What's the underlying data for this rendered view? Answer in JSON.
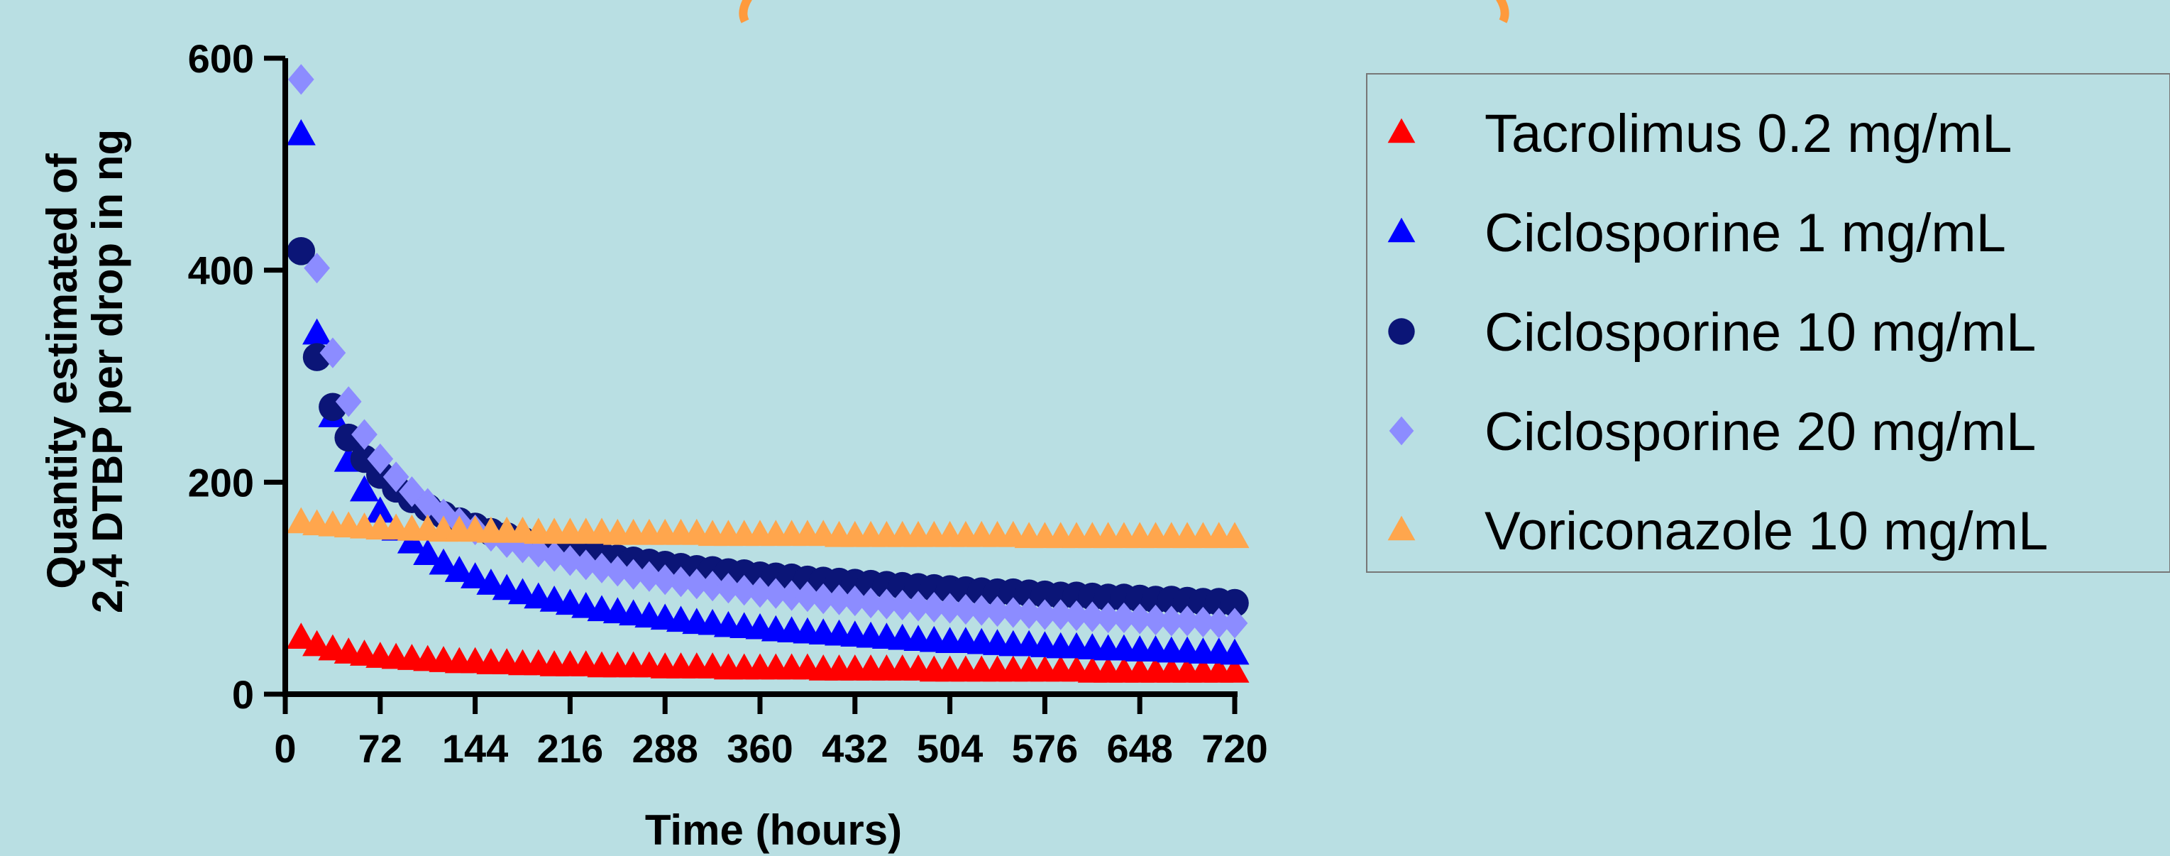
{
  "chart_data": {
    "type": "scatter",
    "xlabel": "Time (hours)",
    "ylabel_lines": [
      "Quantity estimated of",
      "2,4 DTBP per drop in ng"
    ],
    "xlim": [
      0,
      720
    ],
    "ylim": [
      0,
      600
    ],
    "xticks": [
      "0",
      "72",
      "144",
      "216",
      "288",
      "360",
      "432",
      "504",
      "576",
      "648",
      "720"
    ],
    "yticks": [
      "0",
      "200",
      "400",
      "600"
    ],
    "legend_position": "right",
    "series": [
      {
        "name": "Tacrolimus 0.2 mg/mL",
        "marker": "triangle",
        "color": "#ff0000",
        "x": [
          12,
          24,
          36,
          48,
          60,
          72,
          84,
          96,
          108,
          120,
          132,
          144,
          156,
          168,
          180,
          192,
          204,
          216,
          228,
          240,
          252,
          264,
          276,
          288,
          300,
          312,
          324,
          336,
          348,
          360,
          372,
          384,
          396,
          408,
          420,
          432,
          444,
          456,
          468,
          480,
          492,
          504,
          516,
          528,
          540,
          552,
          564,
          576,
          588,
          600,
          612,
          624,
          636,
          648,
          660,
          672,
          684,
          696,
          708,
          720
        ],
        "y": [
          53,
          46,
          42,
          39,
          37,
          35,
          34,
          33,
          32,
          31,
          30,
          30,
          29,
          29,
          28,
          28,
          27,
          27,
          27,
          26,
          26,
          26,
          26,
          25,
          25,
          25,
          25,
          24,
          24,
          24,
          24,
          24,
          24,
          23,
          23,
          23,
          23,
          23,
          23,
          23,
          22,
          22,
          22,
          22,
          22,
          22,
          22,
          22,
          22,
          22,
          21,
          21,
          21,
          21,
          21,
          21,
          21,
          21,
          21,
          21
        ]
      },
      {
        "name": "Ciclosporine 1 mg/mL",
        "marker": "triangle",
        "color": "#0000ff",
        "x": [
          12,
          24,
          36,
          48,
          60,
          72,
          84,
          96,
          108,
          120,
          132,
          144,
          156,
          168,
          180,
          192,
          204,
          216,
          228,
          240,
          252,
          264,
          276,
          288,
          300,
          312,
          324,
          336,
          348,
          360,
          372,
          384,
          396,
          408,
          420,
          432,
          444,
          456,
          468,
          480,
          492,
          504,
          516,
          528,
          540,
          552,
          564,
          576,
          588,
          600,
          612,
          624,
          636,
          648,
          660,
          672,
          684,
          696,
          708,
          720
        ],
        "y": [
          528,
          340,
          262,
          220,
          192,
          172,
          155,
          143,
          132,
          123,
          116,
          110,
          104,
          99,
          95,
          91,
          88,
          85,
          82,
          79,
          77,
          75,
          73,
          71,
          69,
          67,
          66,
          64,
          63,
          62,
          60,
          59,
          58,
          57,
          56,
          55,
          54,
          53,
          52,
          51,
          50,
          49,
          49,
          48,
          47,
          46,
          46,
          45,
          44,
          44,
          43,
          42,
          42,
          41,
          41,
          40,
          40,
          39,
          39,
          38
        ]
      },
      {
        "name": "Ciclosporine 10 mg/mL",
        "marker": "circle",
        "color": "#0b1577",
        "x": [
          12,
          24,
          36,
          48,
          60,
          72,
          84,
          96,
          108,
          120,
          132,
          144,
          156,
          168,
          180,
          192,
          204,
          216,
          228,
          240,
          252,
          264,
          276,
          288,
          300,
          312,
          324,
          336,
          348,
          360,
          372,
          384,
          396,
          408,
          420,
          432,
          444,
          456,
          468,
          480,
          492,
          504,
          516,
          528,
          540,
          552,
          564,
          576,
          588,
          600,
          612,
          624,
          636,
          648,
          660,
          672,
          684,
          696,
          708,
          720
        ],
        "y": [
          418,
          318,
          271,
          242,
          222,
          207,
          194,
          184,
          176,
          169,
          163,
          158,
          153,
          149,
          145,
          142,
          139,
          136,
          133,
          131,
          128,
          126,
          124,
          122,
          120,
          118,
          117,
          115,
          114,
          112,
          111,
          110,
          108,
          107,
          106,
          105,
          104,
          103,
          102,
          101,
          100,
          99,
          98,
          97,
          96,
          96,
          95,
          94,
          93,
          93,
          92,
          91,
          91,
          90,
          89,
          89,
          88,
          87,
          87,
          86
        ]
      },
      {
        "name": "Ciclosporine 20 mg/mL",
        "marker": "diamond",
        "color": "#8c8cff",
        "x": [
          12,
          24,
          36,
          48,
          60,
          72,
          84,
          96,
          108,
          120,
          132,
          144,
          156,
          168,
          180,
          192,
          204,
          216,
          228,
          240,
          252,
          264,
          276,
          288,
          300,
          312,
          324,
          336,
          348,
          360,
          372,
          384,
          396,
          408,
          420,
          432,
          444,
          456,
          468,
          480,
          492,
          504,
          516,
          528,
          540,
          552,
          564,
          576,
          588,
          600,
          612,
          624,
          636,
          648,
          660,
          672,
          684,
          696,
          708,
          720
        ],
        "y": [
          580,
          402,
          322,
          276,
          245,
          222,
          205,
          191,
          180,
          170,
          162,
          155,
          149,
          143,
          138,
          134,
          130,
          126,
          122,
          119,
          116,
          113,
          111,
          108,
          106,
          104,
          102,
          100,
          98,
          96,
          95,
          93,
          92,
          90,
          89,
          88,
          86,
          85,
          84,
          83,
          82,
          81,
          80,
          79,
          78,
          77,
          76,
          75,
          75,
          74,
          73,
          72,
          72,
          71,
          70,
          69,
          69,
          68,
          67,
          67
        ]
      },
      {
        "name": "Voriconazole 10 mg/mL",
        "marker": "triangle",
        "color": "#ffa64d",
        "x": [
          12,
          24,
          36,
          48,
          60,
          72,
          84,
          96,
          108,
          120,
          132,
          144,
          156,
          168,
          180,
          192,
          204,
          216,
          228,
          240,
          252,
          264,
          276,
          288,
          300,
          312,
          324,
          336,
          348,
          360,
          372,
          384,
          396,
          408,
          420,
          432,
          444,
          456,
          468,
          480,
          492,
          504,
          516,
          528,
          540,
          552,
          564,
          576,
          588,
          600,
          612,
          624,
          636,
          648,
          660,
          672,
          684,
          696,
          708,
          720
        ],
        "y": [
          162,
          160,
          159,
          158,
          157,
          156,
          156,
          155,
          155,
          154,
          154,
          154,
          153,
          153,
          153,
          152,
          152,
          152,
          152,
          152,
          151,
          151,
          151,
          151,
          151,
          151,
          150,
          150,
          150,
          150,
          150,
          150,
          150,
          150,
          149,
          149,
          149,
          149,
          149,
          149,
          149,
          149,
          149,
          149,
          149,
          149,
          148,
          148,
          148,
          148,
          148,
          148,
          148,
          148,
          148,
          148,
          148,
          148,
          148,
          148
        ]
      }
    ]
  }
}
